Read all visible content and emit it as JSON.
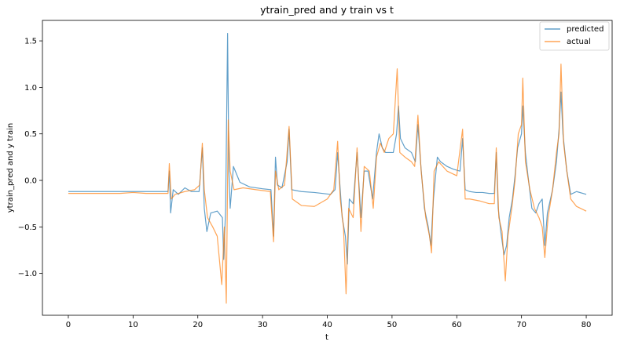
{
  "chart_data": {
    "type": "line",
    "title": "ytrain_pred and y train vs t",
    "xlabel": "t",
    "ylabel": "ytrain_pred and y train",
    "xlim": [
      -4,
      84
    ],
    "ylim": [
      -1.45,
      1.72
    ],
    "xticks": [
      0,
      10,
      20,
      30,
      40,
      50,
      60,
      70,
      80
    ],
    "yticks": [
      -1.0,
      -0.5,
      0.0,
      0.5,
      1.0,
      1.5
    ],
    "ytick_labels": [
      "−1.0",
      "−0.5",
      "0.0",
      "0.5",
      "1.0",
      "1.5"
    ],
    "grid": false,
    "legend": {
      "placement": "top-right"
    },
    "series": [
      {
        "name": "predicted",
        "color": "#1f77b4",
        "opacity": 0.7,
        "points": [
          [
            0,
            -0.12
          ],
          [
            2,
            -0.12
          ],
          [
            4,
            -0.12
          ],
          [
            6,
            -0.12
          ],
          [
            8,
            -0.12
          ],
          [
            10,
            -0.12
          ],
          [
            12,
            -0.12
          ],
          [
            14,
            -0.12
          ],
          [
            15.4,
            -0.12
          ],
          [
            15.6,
            0.1
          ],
          [
            15.8,
            -0.35
          ],
          [
            16.2,
            -0.1
          ],
          [
            17,
            -0.15
          ],
          [
            18,
            -0.08
          ],
          [
            19,
            -0.12
          ],
          [
            20.2,
            -0.12
          ],
          [
            20.7,
            0.35
          ],
          [
            21,
            -0.3
          ],
          [
            21.4,
            -0.55
          ],
          [
            22,
            -0.35
          ],
          [
            23,
            -0.33
          ],
          [
            23.8,
            -0.4
          ],
          [
            24,
            -0.85
          ],
          [
            24.3,
            -0.3
          ],
          [
            24.6,
            1.58
          ],
          [
            24.8,
            0.1
          ],
          [
            25,
            -0.3
          ],
          [
            25.5,
            0.15
          ],
          [
            26.5,
            -0.02
          ],
          [
            28,
            -0.07
          ],
          [
            30,
            -0.09
          ],
          [
            31.3,
            -0.1
          ],
          [
            31.7,
            -0.6
          ],
          [
            32,
            0.25
          ],
          [
            32.3,
            -0.05
          ],
          [
            33,
            -0.08
          ],
          [
            33.8,
            0.2
          ],
          [
            34.1,
            0.55
          ],
          [
            34.5,
            -0.1
          ],
          [
            36,
            -0.12
          ],
          [
            38,
            -0.13
          ],
          [
            40.5,
            -0.15
          ],
          [
            41.2,
            -0.1
          ],
          [
            41.6,
            0.3
          ],
          [
            42.3,
            -0.4
          ],
          [
            42.8,
            -0.6
          ],
          [
            43.1,
            -0.9
          ],
          [
            43.4,
            -0.2
          ],
          [
            44,
            -0.25
          ],
          [
            44.6,
            0.3
          ],
          [
            45.2,
            -0.4
          ],
          [
            45.7,
            0.1
          ],
          [
            46.3,
            0.1
          ],
          [
            47,
            -0.2
          ],
          [
            47.6,
            0.3
          ],
          [
            48,
            0.5
          ],
          [
            48.5,
            0.35
          ],
          [
            49,
            0.3
          ],
          [
            49.5,
            0.3
          ],
          [
            50.2,
            0.3
          ],
          [
            50.7,
            0.5
          ],
          [
            51,
            0.8
          ],
          [
            51.3,
            0.45
          ],
          [
            52,
            0.35
          ],
          [
            53,
            0.3
          ],
          [
            53.6,
            0.2
          ],
          [
            54,
            0.6
          ],
          [
            54.4,
            0.2
          ],
          [
            55,
            -0.3
          ],
          [
            55.6,
            -0.5
          ],
          [
            56,
            -0.7
          ],
          [
            56.4,
            -0.2
          ],
          [
            57,
            0.25
          ],
          [
            57.5,
            0.2
          ],
          [
            58.5,
            0.15
          ],
          [
            59.5,
            0.12
          ],
          [
            60.5,
            0.1
          ],
          [
            60.9,
            0.45
          ],
          [
            61.3,
            -0.1
          ],
          [
            62,
            -0.12
          ],
          [
            63,
            -0.13
          ],
          [
            64,
            -0.13
          ],
          [
            65,
            -0.14
          ],
          [
            65.8,
            -0.14
          ],
          [
            66.1,
            0.3
          ],
          [
            66.4,
            -0.3
          ],
          [
            66.8,
            -0.55
          ],
          [
            67.3,
            -0.8
          ],
          [
            67.7,
            -0.7
          ],
          [
            68.1,
            -0.4
          ],
          [
            68.6,
            -0.2
          ],
          [
            69,
            0.05
          ],
          [
            69.4,
            0.35
          ],
          [
            70,
            0.5
          ],
          [
            70.2,
            0.8
          ],
          [
            70.6,
            0.3
          ],
          [
            71,
            0.05
          ],
          [
            71.6,
            -0.3
          ],
          [
            72.2,
            -0.35
          ],
          [
            72.7,
            -0.25
          ],
          [
            73.2,
            -0.2
          ],
          [
            73.6,
            -0.7
          ],
          [
            74,
            -0.35
          ],
          [
            74.8,
            -0.1
          ],
          [
            75.4,
            0.2
          ],
          [
            75.8,
            0.55
          ],
          [
            76.1,
            0.95
          ],
          [
            76.4,
            0.5
          ],
          [
            77,
            0.1
          ],
          [
            77.6,
            -0.15
          ],
          [
            78.5,
            -0.12
          ],
          [
            80,
            -0.15
          ]
        ]
      },
      {
        "name": "actual",
        "color": "#ff7f0e",
        "opacity": 0.7,
        "points": [
          [
            0,
            -0.14
          ],
          [
            2,
            -0.14
          ],
          [
            4,
            -0.14
          ],
          [
            6,
            -0.14
          ],
          [
            8,
            -0.14
          ],
          [
            10,
            -0.13
          ],
          [
            12,
            -0.14
          ],
          [
            14,
            -0.14
          ],
          [
            15.4,
            -0.14
          ],
          [
            15.6,
            0.18
          ],
          [
            15.9,
            -0.2
          ],
          [
            16.5,
            -0.15
          ],
          [
            18,
            -0.12
          ],
          [
            19.5,
            -0.1
          ],
          [
            20.3,
            -0.05
          ],
          [
            20.7,
            0.4
          ],
          [
            21,
            -0.1
          ],
          [
            21.5,
            -0.4
          ],
          [
            22.3,
            -0.5
          ],
          [
            23,
            -0.6
          ],
          [
            23.7,
            -1.12
          ],
          [
            24.1,
            -0.5
          ],
          [
            24.4,
            -1.32
          ],
          [
            24.7,
            0.65
          ],
          [
            25,
            0.1
          ],
          [
            25.6,
            -0.1
          ],
          [
            27,
            -0.08
          ],
          [
            29,
            -0.1
          ],
          [
            31.2,
            -0.12
          ],
          [
            31.7,
            -0.66
          ],
          [
            32,
            0.1
          ],
          [
            32.5,
            -0.1
          ],
          [
            33.4,
            -0.05
          ],
          [
            34.1,
            0.58
          ],
          [
            34.6,
            -0.2
          ],
          [
            36,
            -0.27
          ],
          [
            38,
            -0.28
          ],
          [
            40,
            -0.2
          ],
          [
            41,
            -0.1
          ],
          [
            41.6,
            0.42
          ],
          [
            42,
            -0.2
          ],
          [
            42.5,
            -0.5
          ],
          [
            42.9,
            -1.22
          ],
          [
            43.3,
            -0.3
          ],
          [
            44,
            -0.4
          ],
          [
            44.6,
            0.35
          ],
          [
            45.2,
            -0.55
          ],
          [
            45.7,
            0.15
          ],
          [
            46.5,
            0.1
          ],
          [
            47.1,
            -0.3
          ],
          [
            47.6,
            0.25
          ],
          [
            48.2,
            0.4
          ],
          [
            48.8,
            0.3
          ],
          [
            49.5,
            0.45
          ],
          [
            50.2,
            0.5
          ],
          [
            50.8,
            1.2
          ],
          [
            51.2,
            0.3
          ],
          [
            52,
            0.25
          ],
          [
            53,
            0.2
          ],
          [
            53.5,
            0.15
          ],
          [
            54,
            0.7
          ],
          [
            54.5,
            0.1
          ],
          [
            55.2,
            -0.4
          ],
          [
            55.8,
            -0.6
          ],
          [
            56.1,
            -0.78
          ],
          [
            56.5,
            0.1
          ],
          [
            57.2,
            0.2
          ],
          [
            58.5,
            0.1
          ],
          [
            60,
            0.05
          ],
          [
            60.9,
            0.55
          ],
          [
            61.3,
            -0.2
          ],
          [
            62,
            -0.2
          ],
          [
            63.5,
            -0.22
          ],
          [
            65,
            -0.25
          ],
          [
            65.8,
            -0.25
          ],
          [
            66.1,
            0.35
          ],
          [
            66.5,
            -0.4
          ],
          [
            67,
            -0.55
          ],
          [
            67.5,
            -1.08
          ],
          [
            67.9,
            -0.6
          ],
          [
            68.5,
            -0.3
          ],
          [
            69,
            0
          ],
          [
            69.5,
            0.5
          ],
          [
            70,
            0.6
          ],
          [
            70.2,
            1.1
          ],
          [
            70.6,
            0.2
          ],
          [
            71.3,
            -0.1
          ],
          [
            72,
            -0.3
          ],
          [
            72.7,
            -0.4
          ],
          [
            73.2,
            -0.5
          ],
          [
            73.6,
            -0.83
          ],
          [
            74.1,
            -0.4
          ],
          [
            74.8,
            -0.1
          ],
          [
            75.4,
            0.3
          ],
          [
            75.8,
            0.5
          ],
          [
            76.1,
            1.25
          ],
          [
            76.5,
            0.4
          ],
          [
            77,
            0.1
          ],
          [
            77.6,
            -0.2
          ],
          [
            78.5,
            -0.28
          ],
          [
            80,
            -0.33
          ]
        ]
      }
    ]
  }
}
